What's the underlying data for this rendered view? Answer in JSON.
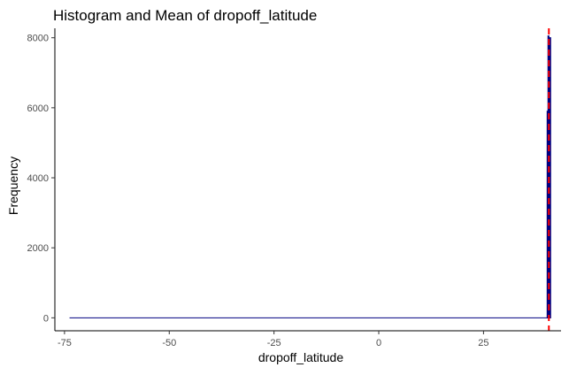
{
  "chart_data": {
    "type": "bar",
    "title": "Histogram and Mean of  dropoff_latitude",
    "xlabel": "dropoff_latitude",
    "ylabel": "Frequency",
    "xlim": [
      -77.3,
      43.5
    ],
    "ylim": [
      -370,
      8270
    ],
    "x_ticks": [
      -75,
      -50,
      -25,
      0,
      25
    ],
    "x_tick_labels": [
      "-75",
      "-50",
      "-25",
      "0",
      "25"
    ],
    "y_ticks": [
      0,
      2000,
      4000,
      6000,
      8000
    ],
    "y_tick_labels": [
      "0",
      "2000",
      "4000",
      "6000",
      "8000"
    ],
    "bin_width": 0.2,
    "bins": [
      {
        "x0": -73.8,
        "x1": 40.2,
        "count": 0
      },
      {
        "x0": 40.2,
        "x1": 40.4,
        "count": 5900
      },
      {
        "x0": 40.4,
        "x1": 40.6,
        "count": 8050
      },
      {
        "x0": 40.6,
        "x1": 40.8,
        "count": 7950
      },
      {
        "x0": 40.8,
        "x1": 41.0,
        "count": 8000
      }
    ],
    "baseline_segment": {
      "x0": -73.8,
      "x1": 41.0,
      "y": 0
    },
    "mean_line": {
      "x": 40.6,
      "color": "#ff0000",
      "style": "dashed"
    },
    "grid": false,
    "legend": "none",
    "colors": {
      "bar_fill": "#87ceeb",
      "bar_outline": "#000080",
      "baseline": "#000080",
      "mean": "#ff0000",
      "axis": "#000000",
      "tick_text": "#4d4d4d",
      "title_text": "#000000"
    }
  }
}
